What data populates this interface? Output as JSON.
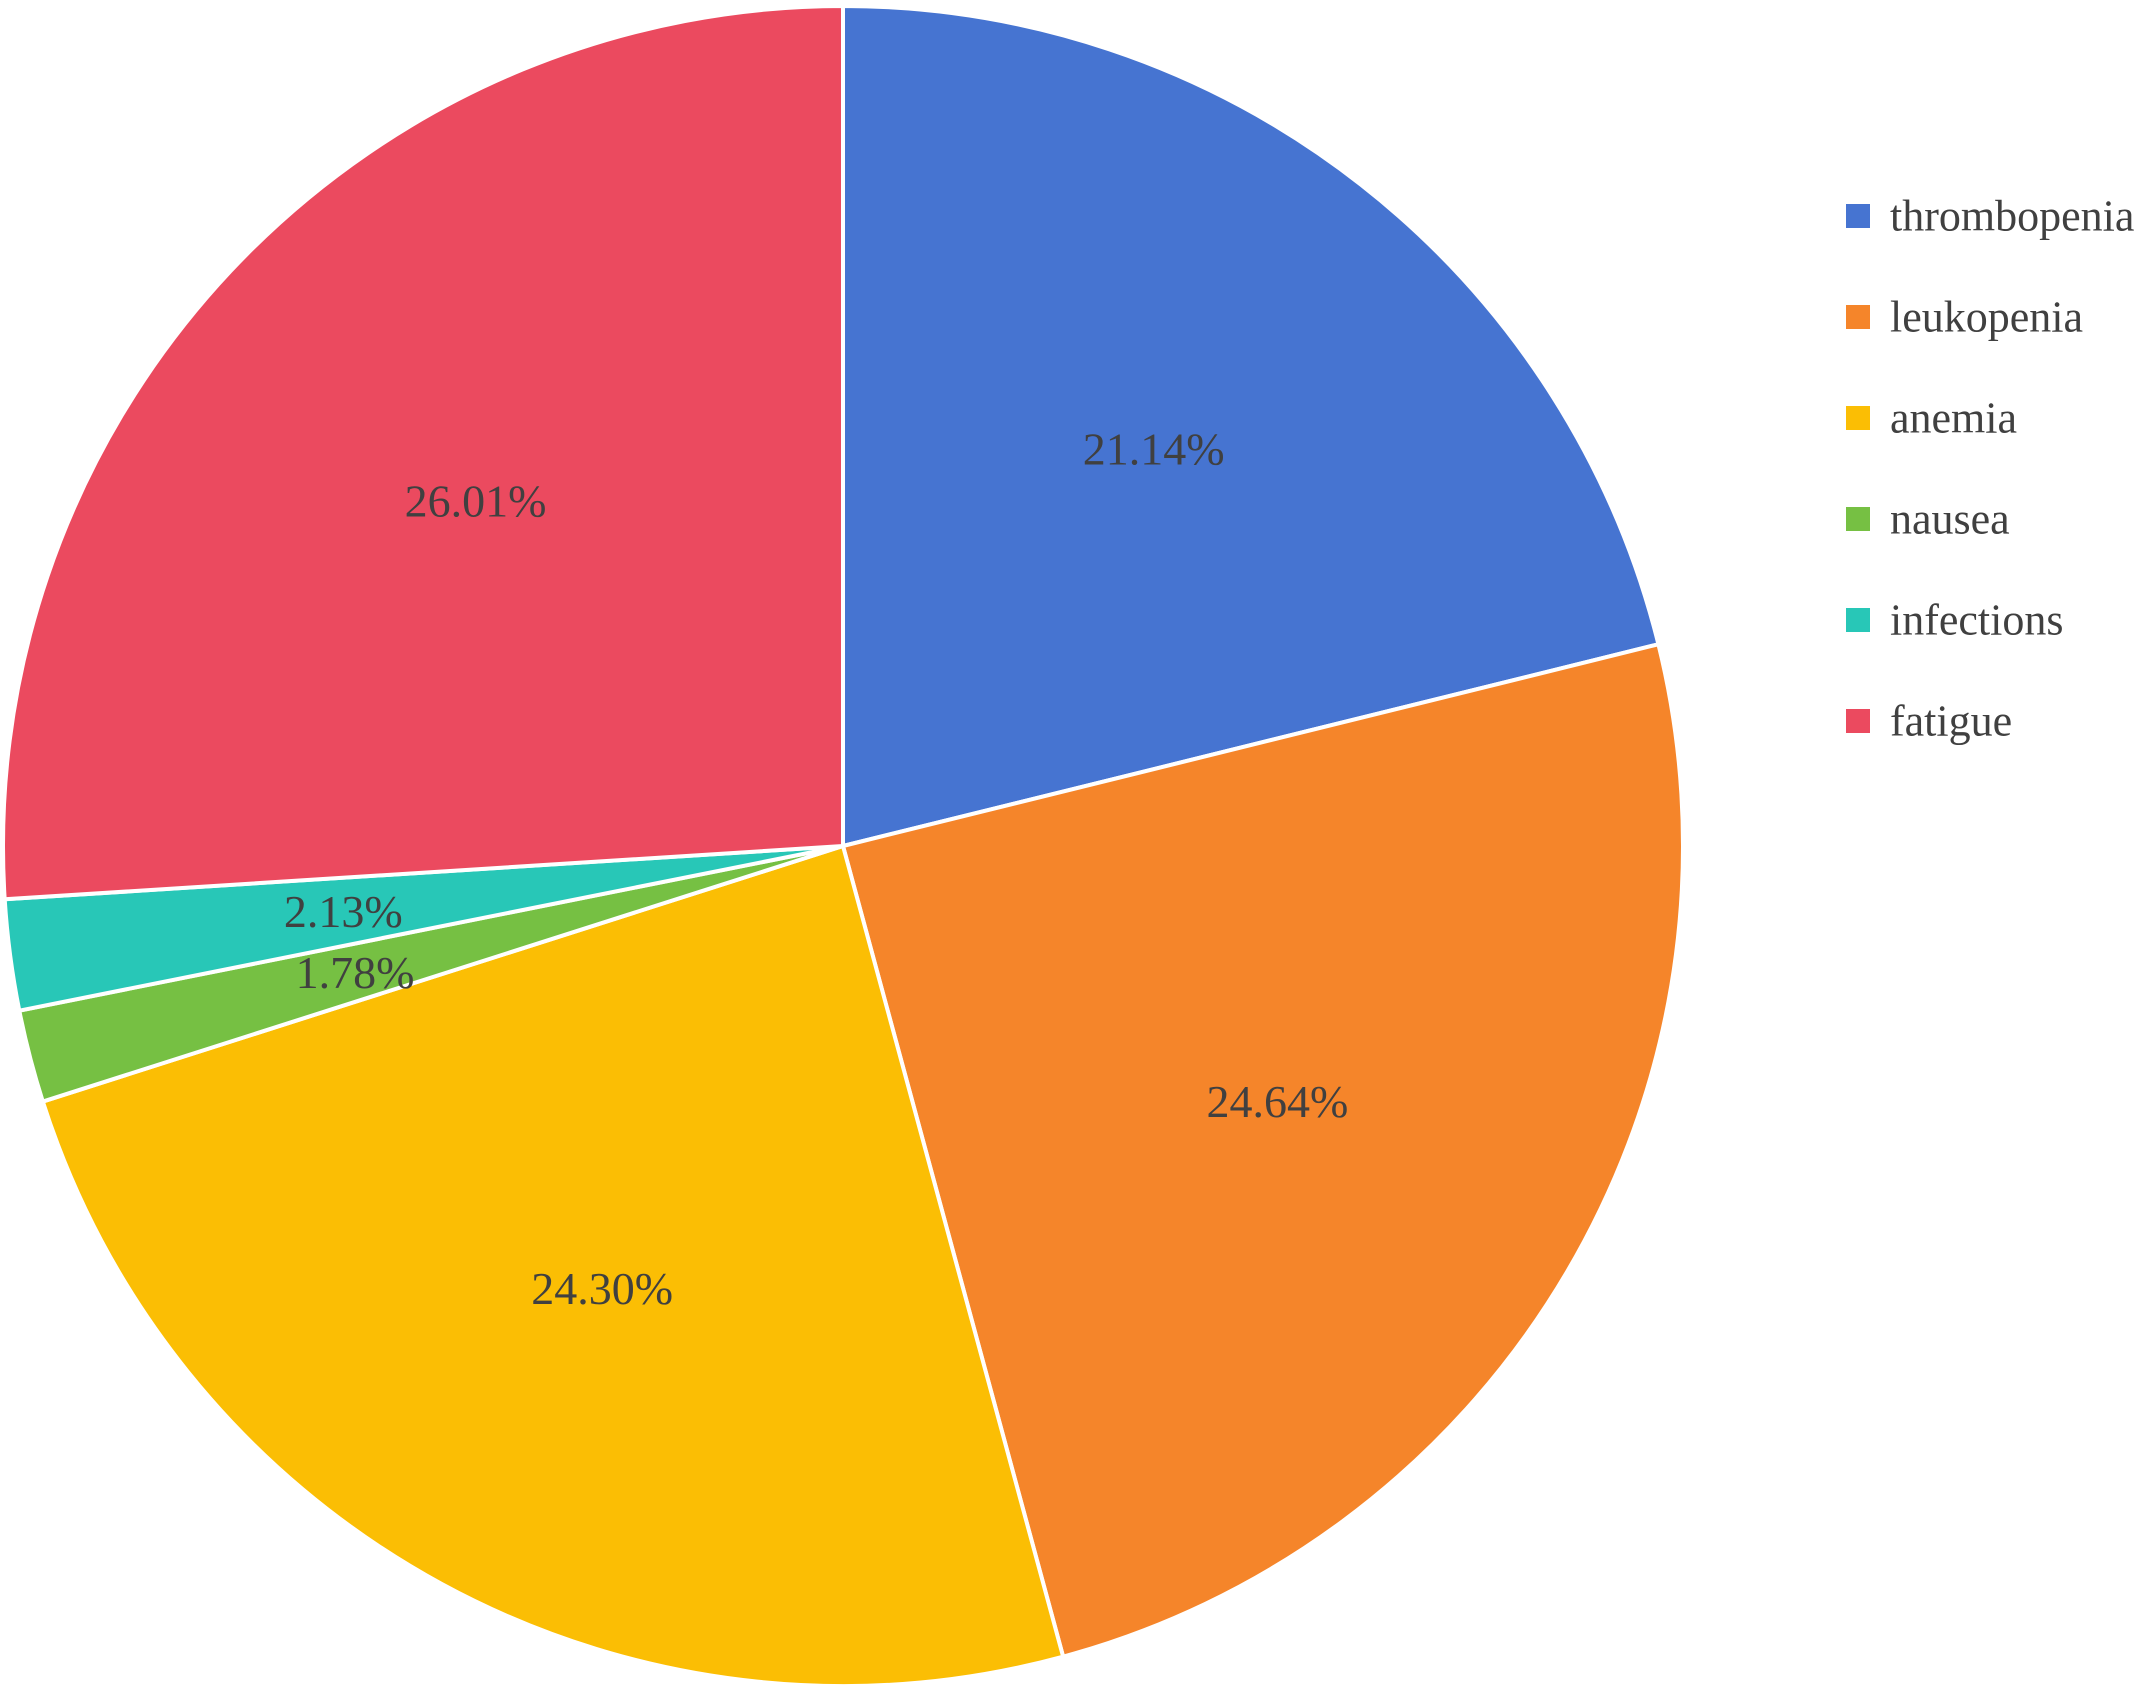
{
  "chart_data": {
    "type": "pie",
    "title": "",
    "start_angle_deg": 0,
    "direction": "clockwise",
    "legend_position": "right",
    "slices": [
      {
        "name": "thrombopenia",
        "value": 21.14,
        "label": "21.14%",
        "color": "#4674D1"
      },
      {
        "name": "leukopenia",
        "value": 24.64,
        "label": "24.64%",
        "color": "#F5852A"
      },
      {
        "name": "anemia",
        "value": 24.3,
        "label": "24.30%",
        "color": "#FBBE04"
      },
      {
        "name": "nausea",
        "value": 1.78,
        "label": "1.78%",
        "color": "#76C043"
      },
      {
        "name": "infections",
        "value": 2.13,
        "label": "2.13%",
        "color": "#28C7B7"
      },
      {
        "name": "fatigue",
        "value": 26.01,
        "label": "26.01%",
        "color": "#EB4A5F"
      }
    ]
  }
}
